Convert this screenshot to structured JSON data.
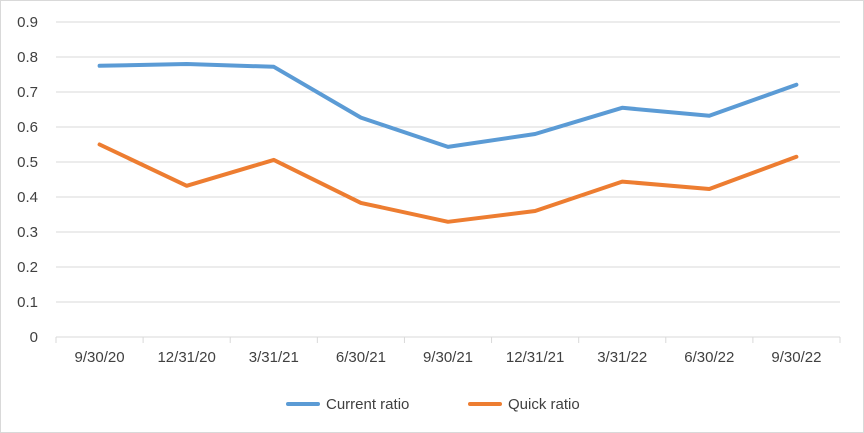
{
  "chart_data": {
    "type": "line",
    "categories": [
      "9/30/20",
      "12/31/20",
      "3/31/21",
      "6/30/21",
      "9/30/21",
      "12/31/21",
      "3/31/22",
      "6/30/22",
      "9/30/22"
    ],
    "series": [
      {
        "name": "Current ratio",
        "color": "#5b9bd5",
        "values": [
          0.775,
          0.78,
          0.772,
          0.627,
          0.543,
          0.58,
          0.655,
          0.632,
          0.721
        ]
      },
      {
        "name": "Quick ratio",
        "color": "#ed7d31",
        "values": [
          0.55,
          0.432,
          0.506,
          0.383,
          0.329,
          0.36,
          0.444,
          0.423,
          0.515
        ]
      }
    ],
    "yticks": [
      "0",
      "0.1",
      "0.2",
      "0.3",
      "0.4",
      "0.5",
      "0.6",
      "0.7",
      "0.8",
      "0.9"
    ],
    "ylim": [
      0,
      0.9
    ],
    "grid": true,
    "legend_position": "bottom",
    "title": "",
    "xlabel": "",
    "ylabel": ""
  }
}
